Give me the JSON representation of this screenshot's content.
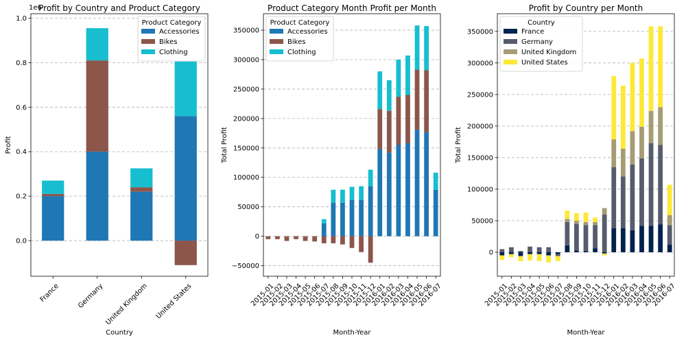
{
  "colors": {
    "accessories": "#1f77b4",
    "bikes": "#8c564b",
    "clothing": "#17becf",
    "france": "#00224e",
    "germany": "#575c6d",
    "united_kingdom": "#a59c74",
    "united_states": "#fee838"
  },
  "chart_data": [
    {
      "type": "bar",
      "stacked": true,
      "title": "Profit by Country and Product Category",
      "xlabel": "Country",
      "ylabel": "Profit",
      "y_offset_text": "1e6",
      "ylim": [
        -0.16,
        1.02
      ],
      "y_ticks": [
        0.0,
        0.2,
        0.4,
        0.6,
        0.8,
        1.0
      ],
      "y_tick_labels": [
        "0.0",
        "0.2",
        "0.4",
        "0.6",
        "0.8",
        "1.0"
      ],
      "grid": "y-dashed",
      "legend_title": "Product Category",
      "legend_position": "upper-right",
      "categories": [
        "France",
        "Germany",
        "United Kingdom",
        "United States"
      ],
      "series": [
        {
          "name": "Accessories",
          "color_key": "accessories",
          "values": [
            0.2,
            0.4,
            0.22,
            0.56
          ]
        },
        {
          "name": "Bikes",
          "color_key": "bikes",
          "values": [
            0.01,
            0.41,
            0.02,
            -0.11
          ]
        },
        {
          "name": "Clothing",
          "color_key": "clothing",
          "values": [
            0.06,
            0.145,
            0.085,
            0.245
          ]
        }
      ]
    },
    {
      "type": "bar",
      "stacked": true,
      "title": "Product Category Month Profit per Month",
      "xlabel": "Month-Year",
      "ylabel": "Total Profit",
      "ylim": [
        -68000,
        378000
      ],
      "y_ticks": [
        -50000,
        0,
        50000,
        100000,
        150000,
        200000,
        250000,
        300000,
        350000
      ],
      "y_tick_labels": [
        "−50000",
        "0",
        "50000",
        "100000",
        "150000",
        "200000",
        "250000",
        "300000",
        "350000"
      ],
      "grid": "y-dashed",
      "legend_title": "Product Category",
      "legend_position": "upper-left",
      "categories": [
        "2015-01",
        "2015-02",
        "2015-03",
        "2015-04",
        "2015-05",
        "2015-06",
        "2015-07",
        "2015-08",
        "2015-09",
        "2015-10",
        "2015-11",
        "2015-12",
        "2016-01",
        "2016-02",
        "2016-03",
        "2016-04",
        "2016-05",
        "2016-06",
        "2016-07"
      ],
      "series": [
        {
          "name": "Accessories",
          "color_key": "accessories",
          "values": [
            0,
            0,
            0,
            0,
            0,
            0,
            22000,
            57000,
            57000,
            62000,
            62000,
            85000,
            148000,
            142000,
            155000,
            158000,
            181000,
            177000,
            79000
          ]
        },
        {
          "name": "Bikes",
          "color_key": "bikes",
          "values": [
            -5000,
            -5000,
            -8000,
            -5000,
            -8000,
            -9000,
            -12000,
            -12000,
            -14000,
            -20000,
            -27000,
            -45000,
            68000,
            71000,
            82000,
            82000,
            102000,
            105000,
            0
          ]
        },
        {
          "name": "Clothing",
          "color_key": "clothing",
          "values": [
            0,
            0,
            0,
            0,
            0,
            0,
            7000,
            22000,
            22000,
            22000,
            23000,
            28000,
            64000,
            52000,
            63000,
            67000,
            75000,
            75000,
            29000
          ]
        }
      ]
    },
    {
      "type": "bar",
      "stacked": true,
      "title": "Profit by Country per Month",
      "xlabel": "Month-Year",
      "ylabel": "Total Profit",
      "ylim": [
        -38000,
        378000
      ],
      "y_ticks": [
        0,
        50000,
        100000,
        150000,
        200000,
        250000,
        300000,
        350000
      ],
      "y_tick_labels": [
        "0",
        "50000",
        "100000",
        "150000",
        "200000",
        "250000",
        "300000",
        "350000"
      ],
      "grid": "y-dashed",
      "legend_title": "Country",
      "legend_position": "upper-left",
      "categories": [
        "2015-01",
        "2015-02",
        "2015-03",
        "2015-04",
        "2015-05",
        "2015-06",
        "2015-07",
        "2015-08",
        "2015-09",
        "2015-10",
        "2015-11",
        "2015-12",
        "2016-01",
        "2016-02",
        "2016-03",
        "2016-04",
        "2016-05",
        "2016-06",
        "2016-07"
      ],
      "series": [
        {
          "name": "France",
          "color_key": "france",
          "values": [
            -5000,
            -3000,
            -6000,
            -3000,
            -3000,
            -5000,
            -3000,
            11000,
            3000,
            2000,
            6000,
            -2000,
            38000,
            38000,
            35000,
            42000,
            42000,
            44000,
            12000
          ]
        },
        {
          "name": "Germany",
          "color_key": "germany",
          "values": [
            5000,
            8000,
            2000,
            9000,
            8000,
            8000,
            -3000,
            37000,
            42000,
            41000,
            37000,
            60000,
            97000,
            82000,
            104000,
            107000,
            131000,
            126000,
            31000
          ]
        },
        {
          "name": "United Kingdom",
          "color_key": "united_kingdom",
          "values": [
            0,
            0,
            0,
            0,
            0,
            0,
            0,
            5000,
            5000,
            5000,
            5000,
            10000,
            44000,
            44000,
            53000,
            50000,
            51000,
            60000,
            16000
          ]
        },
        {
          "name": "United States",
          "color_key": "united_states",
          "values": [
            -7000,
            -5000,
            -8000,
            -10000,
            -11000,
            -11000,
            -8000,
            13000,
            12000,
            15000,
            7000,
            -3000,
            100000,
            100000,
            108000,
            108000,
            134000,
            128000,
            48000
          ]
        }
      ]
    }
  ]
}
